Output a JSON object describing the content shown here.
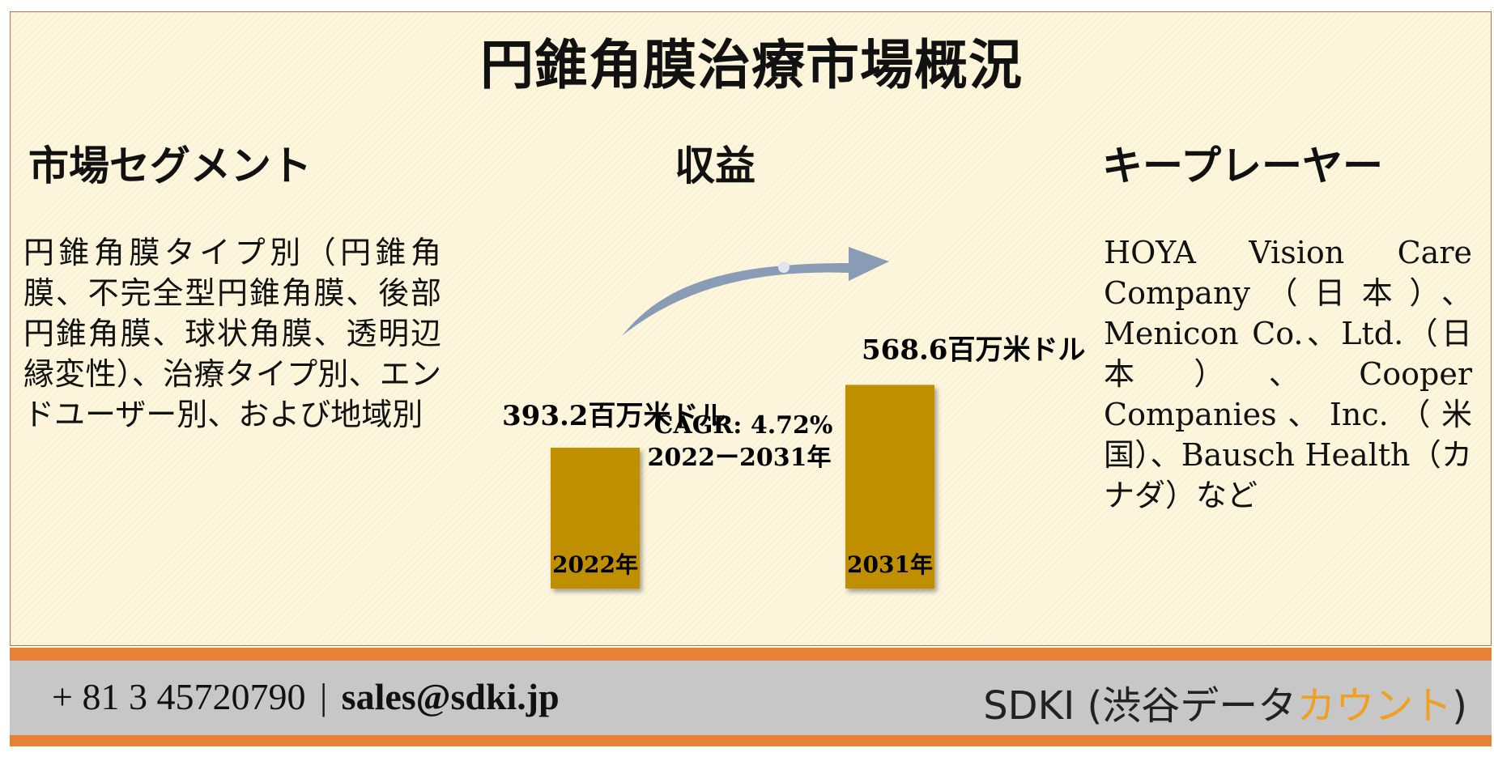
{
  "title": "円錐角膜治療市場概況",
  "segment": {
    "heading": "市場セグメント",
    "text": "円錐角膜タイプ別（円錐角膜、不完全型円錐角膜、後部円錐角膜、球状角膜、透明辺縁変性）、治療タイプ別、エンドユーザー別、および地域別"
  },
  "revenue": {
    "heading": "収益",
    "cagr_line1": "CAGR: 4.72%",
    "cagr_line2": "2022ー2031年"
  },
  "key_players": {
    "heading": "キープレーヤー",
    "text": "HOYA Vision Care Company（日本）、Menicon Co.、Ltd.（日本）、Cooper Companies、Inc.（米国）、Bausch Health（カナダ）など"
  },
  "footer": {
    "phone": "+ 81 3 45720790",
    "separator": "|",
    "email": "sales@sdki.jp",
    "company_main": "SDKI (渋谷データ",
    "company_accent": "カウント",
    "company_close": ")"
  },
  "colors": {
    "bar": "#bf8f00",
    "arrow": "#8a9bb5",
    "footer_accent": "#e88036",
    "footer_bar": "#c7c7c7",
    "brand_accent": "#f0a020"
  },
  "chart_data": {
    "type": "bar",
    "categories": [
      "2022年",
      "2031年"
    ],
    "values": [
      393.2,
      568.6
    ],
    "value_labels": [
      "393.2百万米ドル",
      "568.6百万米ドル"
    ],
    "title": "",
    "xlabel": "",
    "ylabel": "",
    "annotation": "CAGR: 4.72% 2022ー2031年"
  }
}
